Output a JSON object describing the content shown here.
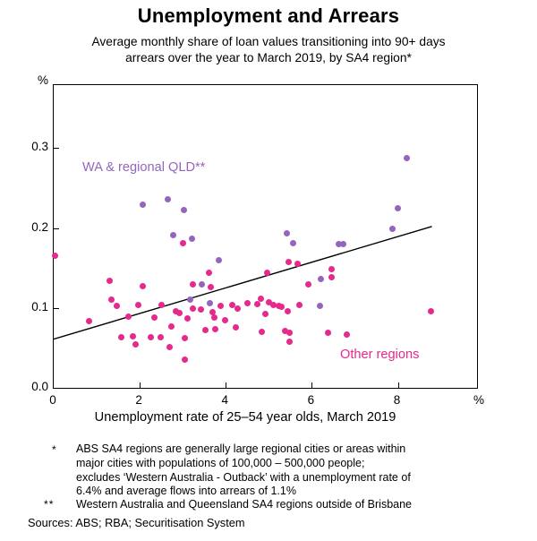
{
  "title": "Unemployment and Arrears",
  "subtitle": "Average monthly share of loan values transitioning into 90+ days\narrears over the year to March 2019, by SA4 region*",
  "axis": {
    "x_title": "Unemployment rate of 25–54 year olds, March 2019",
    "y_unit_top_left": "%",
    "x_unit_bottom_right": "%"
  },
  "chart_data": {
    "type": "scatter",
    "title": "Unemployment and Arrears",
    "subtitle": "Average monthly share of loan values transitioning into 90+ days arrears over the year to March 2019, by SA4 region*",
    "xlabel": "Unemployment rate of 25–54 year olds, March 2019",
    "ylabel": "%",
    "xlim": [
      0,
      9.84
    ],
    "ylim": [
      0,
      0.379
    ],
    "x_tick_values": [
      0,
      2,
      4,
      6,
      8
    ],
    "x_tick_labels": [
      "0",
      "2",
      "4",
      "6",
      "8"
    ],
    "y_tick_values": [
      0,
      0.1,
      0.2,
      0.3
    ],
    "y_tick_labels": [
      "0.0",
      "0.1",
      "0.2",
      "0.3"
    ],
    "grid": false,
    "legend_position": "inside-annotations",
    "series": [
      {
        "name": "Other regions",
        "color": "#E6298C",
        "points": [
          [
            0.04,
            0.165
          ],
          [
            0.82,
            0.084
          ],
          [
            1.3,
            0.134
          ],
          [
            1.35,
            0.11
          ],
          [
            1.47,
            0.103
          ],
          [
            1.57,
            0.063
          ],
          [
            1.74,
            0.089
          ],
          [
            1.84,
            0.064
          ],
          [
            1.91,
            0.054
          ],
          [
            1.97,
            0.104
          ],
          [
            2.08,
            0.127
          ],
          [
            2.25,
            0.063
          ],
          [
            2.34,
            0.088
          ],
          [
            2.48,
            0.063
          ],
          [
            2.51,
            0.104
          ],
          [
            2.7,
            0.051
          ],
          [
            2.74,
            0.077
          ],
          [
            2.85,
            0.096
          ],
          [
            2.92,
            0.094
          ],
          [
            3.01,
            0.181
          ],
          [
            3.04,
            0.035
          ],
          [
            3.05,
            0.062
          ],
          [
            3.11,
            0.087
          ],
          [
            3.23,
            0.13
          ],
          [
            3.24,
            0.099
          ],
          [
            3.42,
            0.098
          ],
          [
            3.53,
            0.072
          ],
          [
            3.6,
            0.144
          ],
          [
            3.65,
            0.126
          ],
          [
            3.69,
            0.095
          ],
          [
            3.73,
            0.088
          ],
          [
            3.76,
            0.074
          ],
          [
            3.88,
            0.103
          ],
          [
            3.98,
            0.085
          ],
          [
            4.15,
            0.104
          ],
          [
            4.23,
            0.076
          ],
          [
            4.27,
            0.099
          ],
          [
            4.5,
            0.106
          ],
          [
            4.74,
            0.105
          ],
          [
            4.81,
            0.112
          ],
          [
            4.84,
            0.07
          ],
          [
            4.92,
            0.092
          ],
          [
            4.97,
            0.144
          ],
          [
            5.0,
            0.107
          ],
          [
            5.1,
            0.104
          ],
          [
            5.24,
            0.103
          ],
          [
            5.3,
            0.101
          ],
          [
            5.38,
            0.071
          ],
          [
            5.45,
            0.096
          ],
          [
            5.46,
            0.157
          ],
          [
            5.48,
            0.069
          ],
          [
            5.49,
            0.058
          ],
          [
            5.67,
            0.155
          ],
          [
            5.72,
            0.104
          ],
          [
            5.91,
            0.13
          ],
          [
            6.37,
            0.069
          ],
          [
            6.45,
            0.149
          ],
          [
            6.45,
            0.139
          ],
          [
            6.81,
            0.067
          ],
          [
            8.77,
            0.096
          ]
        ]
      },
      {
        "name": "WA & regional QLD**",
        "color": "#9565BE",
        "points": [
          [
            2.06,
            0.229
          ],
          [
            2.66,
            0.236
          ],
          [
            2.77,
            0.191
          ],
          [
            3.02,
            0.223
          ],
          [
            3.18,
            0.111
          ],
          [
            3.21,
            0.187
          ],
          [
            3.44,
            0.129
          ],
          [
            3.64,
            0.106
          ],
          [
            3.84,
            0.16
          ],
          [
            5.41,
            0.193
          ],
          [
            5.56,
            0.181
          ],
          [
            6.18,
            0.103
          ],
          [
            6.22,
            0.136
          ],
          [
            6.63,
            0.18
          ],
          [
            6.72,
            0.18
          ],
          [
            7.87,
            0.199
          ],
          [
            7.99,
            0.225
          ],
          [
            8.21,
            0.288
          ]
        ]
      }
    ],
    "trendline": {
      "x1": 0,
      "y1": 0.061,
      "x2": 8.79,
      "y2": 0.202,
      "color": "#000000"
    }
  },
  "footnotes": [
    {
      "marker": "*",
      "text": "ABS SA4 regions are generally large regional cities or areas within\nmajor cities with populations of 100,000 – 500,000 people;\nexcludes ‘Western Australia - Outback’ with a unemployment rate of\n6.4% and average flows into arrears of 1.1%"
    },
    {
      "marker": "**",
      "text": "Western Australia and Queensland SA4 regions outside of Brisbane"
    }
  ],
  "sources": "Sources: ABS; RBA; Securitisation System"
}
